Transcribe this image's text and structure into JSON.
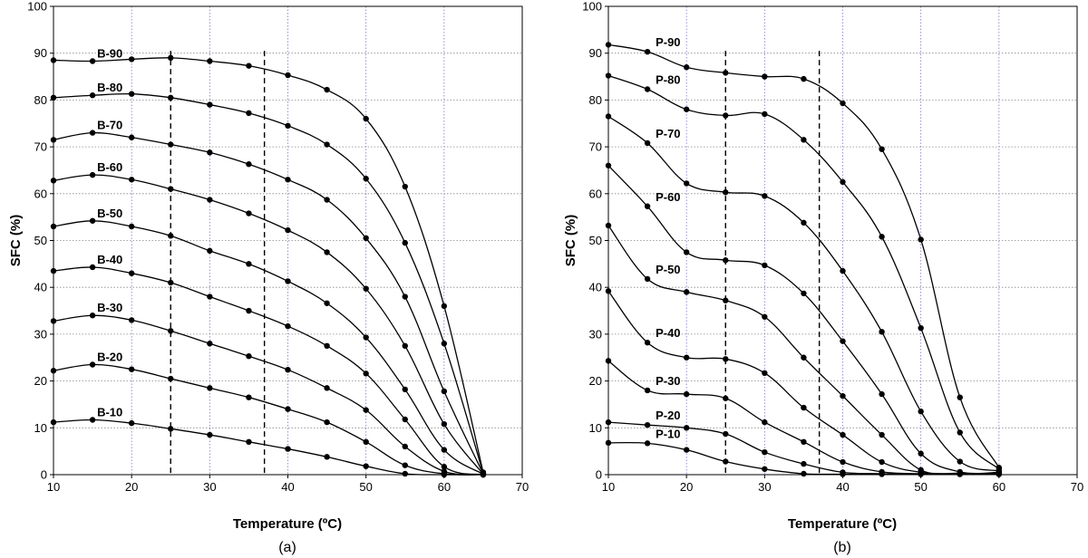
{
  "chart_data": [
    {
      "type": "line",
      "panel_label": "(a)",
      "xlabel": "Temperature (ºC)",
      "ylabel": "SFC (%)",
      "xlim": [
        10,
        70
      ],
      "ylim": [
        0,
        100
      ],
      "xticks": [
        10,
        20,
        30,
        40,
        50,
        60,
        70
      ],
      "yticks": [
        0,
        10,
        20,
        30,
        40,
        50,
        60,
        70,
        80,
        90,
        100
      ],
      "grid": "dotted",
      "reference_lines_x": [
        25,
        37
      ],
      "x": [
        10,
        15,
        20,
        25,
        30,
        35,
        40,
        45,
        50,
        55,
        60,
        65
      ],
      "series": [
        {
          "name": "B-90",
          "values": [
            88.5,
            88.3,
            88.7,
            89.0,
            88.3,
            87.3,
            85.3,
            82.2,
            76.0,
            61.5,
            36.0,
            0.5
          ]
        },
        {
          "name": "B-80",
          "values": [
            80.5,
            81.0,
            81.3,
            80.5,
            79.0,
            77.2,
            74.5,
            70.5,
            63.2,
            49.5,
            28.0,
            0.3
          ]
        },
        {
          "name": "B-70",
          "values": [
            71.5,
            73.0,
            72.0,
            70.5,
            68.8,
            66.3,
            63.0,
            58.7,
            50.5,
            38.0,
            17.8,
            0.2
          ]
        },
        {
          "name": "B-60",
          "values": [
            62.8,
            64.0,
            63.0,
            61.0,
            58.7,
            55.8,
            52.2,
            47.5,
            39.7,
            27.5,
            10.8,
            0.1
          ]
        },
        {
          "name": "B-50",
          "values": [
            53.0,
            54.2,
            53.0,
            51.0,
            47.8,
            45.0,
            41.3,
            36.6,
            29.3,
            18.2,
            5.3,
            0.1
          ]
        },
        {
          "name": "B-40",
          "values": [
            43.5,
            44.3,
            43.0,
            41.0,
            38.0,
            35.0,
            31.7,
            27.5,
            21.6,
            11.8,
            1.7,
            0.0
          ]
        },
        {
          "name": "B-30",
          "values": [
            32.8,
            34.0,
            33.0,
            30.7,
            28.0,
            25.3,
            22.4,
            18.5,
            13.8,
            6.0,
            0.7,
            0.0
          ]
        },
        {
          "name": "B-20",
          "values": [
            22.2,
            23.5,
            22.5,
            20.5,
            18.5,
            16.5,
            14.0,
            11.2,
            7.0,
            2.0,
            0.2,
            0.0
          ]
        },
        {
          "name": "B-10",
          "values": [
            11.2,
            11.7,
            11.0,
            9.8,
            8.5,
            7.0,
            5.5,
            3.8,
            1.8,
            0.2,
            0.0,
            0.0
          ]
        }
      ]
    },
    {
      "type": "line",
      "panel_label": "(b)",
      "xlabel": "Temperature (ºC)",
      "ylabel": "SFC (%)",
      "xlim": [
        10,
        70
      ],
      "ylim": [
        0,
        100
      ],
      "xticks": [
        10,
        20,
        30,
        40,
        50,
        60,
        70
      ],
      "yticks": [
        0,
        10,
        20,
        30,
        40,
        50,
        60,
        70,
        80,
        90,
        100
      ],
      "grid": "dotted",
      "reference_lines_x": [
        25,
        37
      ],
      "x": [
        10,
        15,
        20,
        25,
        30,
        35,
        40,
        45,
        50,
        55,
        60
      ],
      "series": [
        {
          "name": "P-90",
          "values": [
            91.8,
            90.3,
            87.0,
            85.8,
            85.0,
            84.5,
            79.3,
            69.5,
            50.2,
            16.5,
            1.5
          ]
        },
        {
          "name": "P-80",
          "values": [
            85.2,
            82.3,
            78.0,
            76.7,
            77.0,
            71.5,
            62.5,
            50.8,
            31.3,
            9.0,
            1.2
          ]
        },
        {
          "name": "P-70",
          "values": [
            76.5,
            70.8,
            62.2,
            60.3,
            59.5,
            53.8,
            43.5,
            30.5,
            13.5,
            2.8,
            0.8
          ]
        },
        {
          "name": "P-60",
          "values": [
            66.0,
            57.3,
            47.5,
            45.8,
            44.7,
            38.7,
            28.5,
            17.2,
            4.5,
            0.6,
            0.5
          ]
        },
        {
          "name": "P-50",
          "values": [
            53.2,
            41.8,
            39.0,
            37.2,
            33.7,
            25.0,
            16.8,
            8.5,
            1.0,
            0.3,
            0.3
          ]
        },
        {
          "name": "P-40",
          "values": [
            39.2,
            28.2,
            25.0,
            24.7,
            21.7,
            14.3,
            8.5,
            2.7,
            0.5,
            0.2,
            0.2
          ]
        },
        {
          "name": "P-30",
          "values": [
            24.3,
            18.0,
            17.2,
            16.3,
            11.2,
            7.0,
            2.7,
            0.6,
            0.2,
            0.1,
            0.1
          ]
        },
        {
          "name": "P-20",
          "values": [
            11.2,
            10.6,
            10.0,
            8.7,
            4.8,
            2.3,
            0.5,
            0.2,
            0.1,
            0.1,
            0.1
          ]
        },
        {
          "name": "P-10",
          "values": [
            6.8,
            6.7,
            5.3,
            2.8,
            1.2,
            0.2,
            0.1,
            0.1,
            0.1,
            0.1,
            0.1
          ]
        }
      ]
    }
  ]
}
